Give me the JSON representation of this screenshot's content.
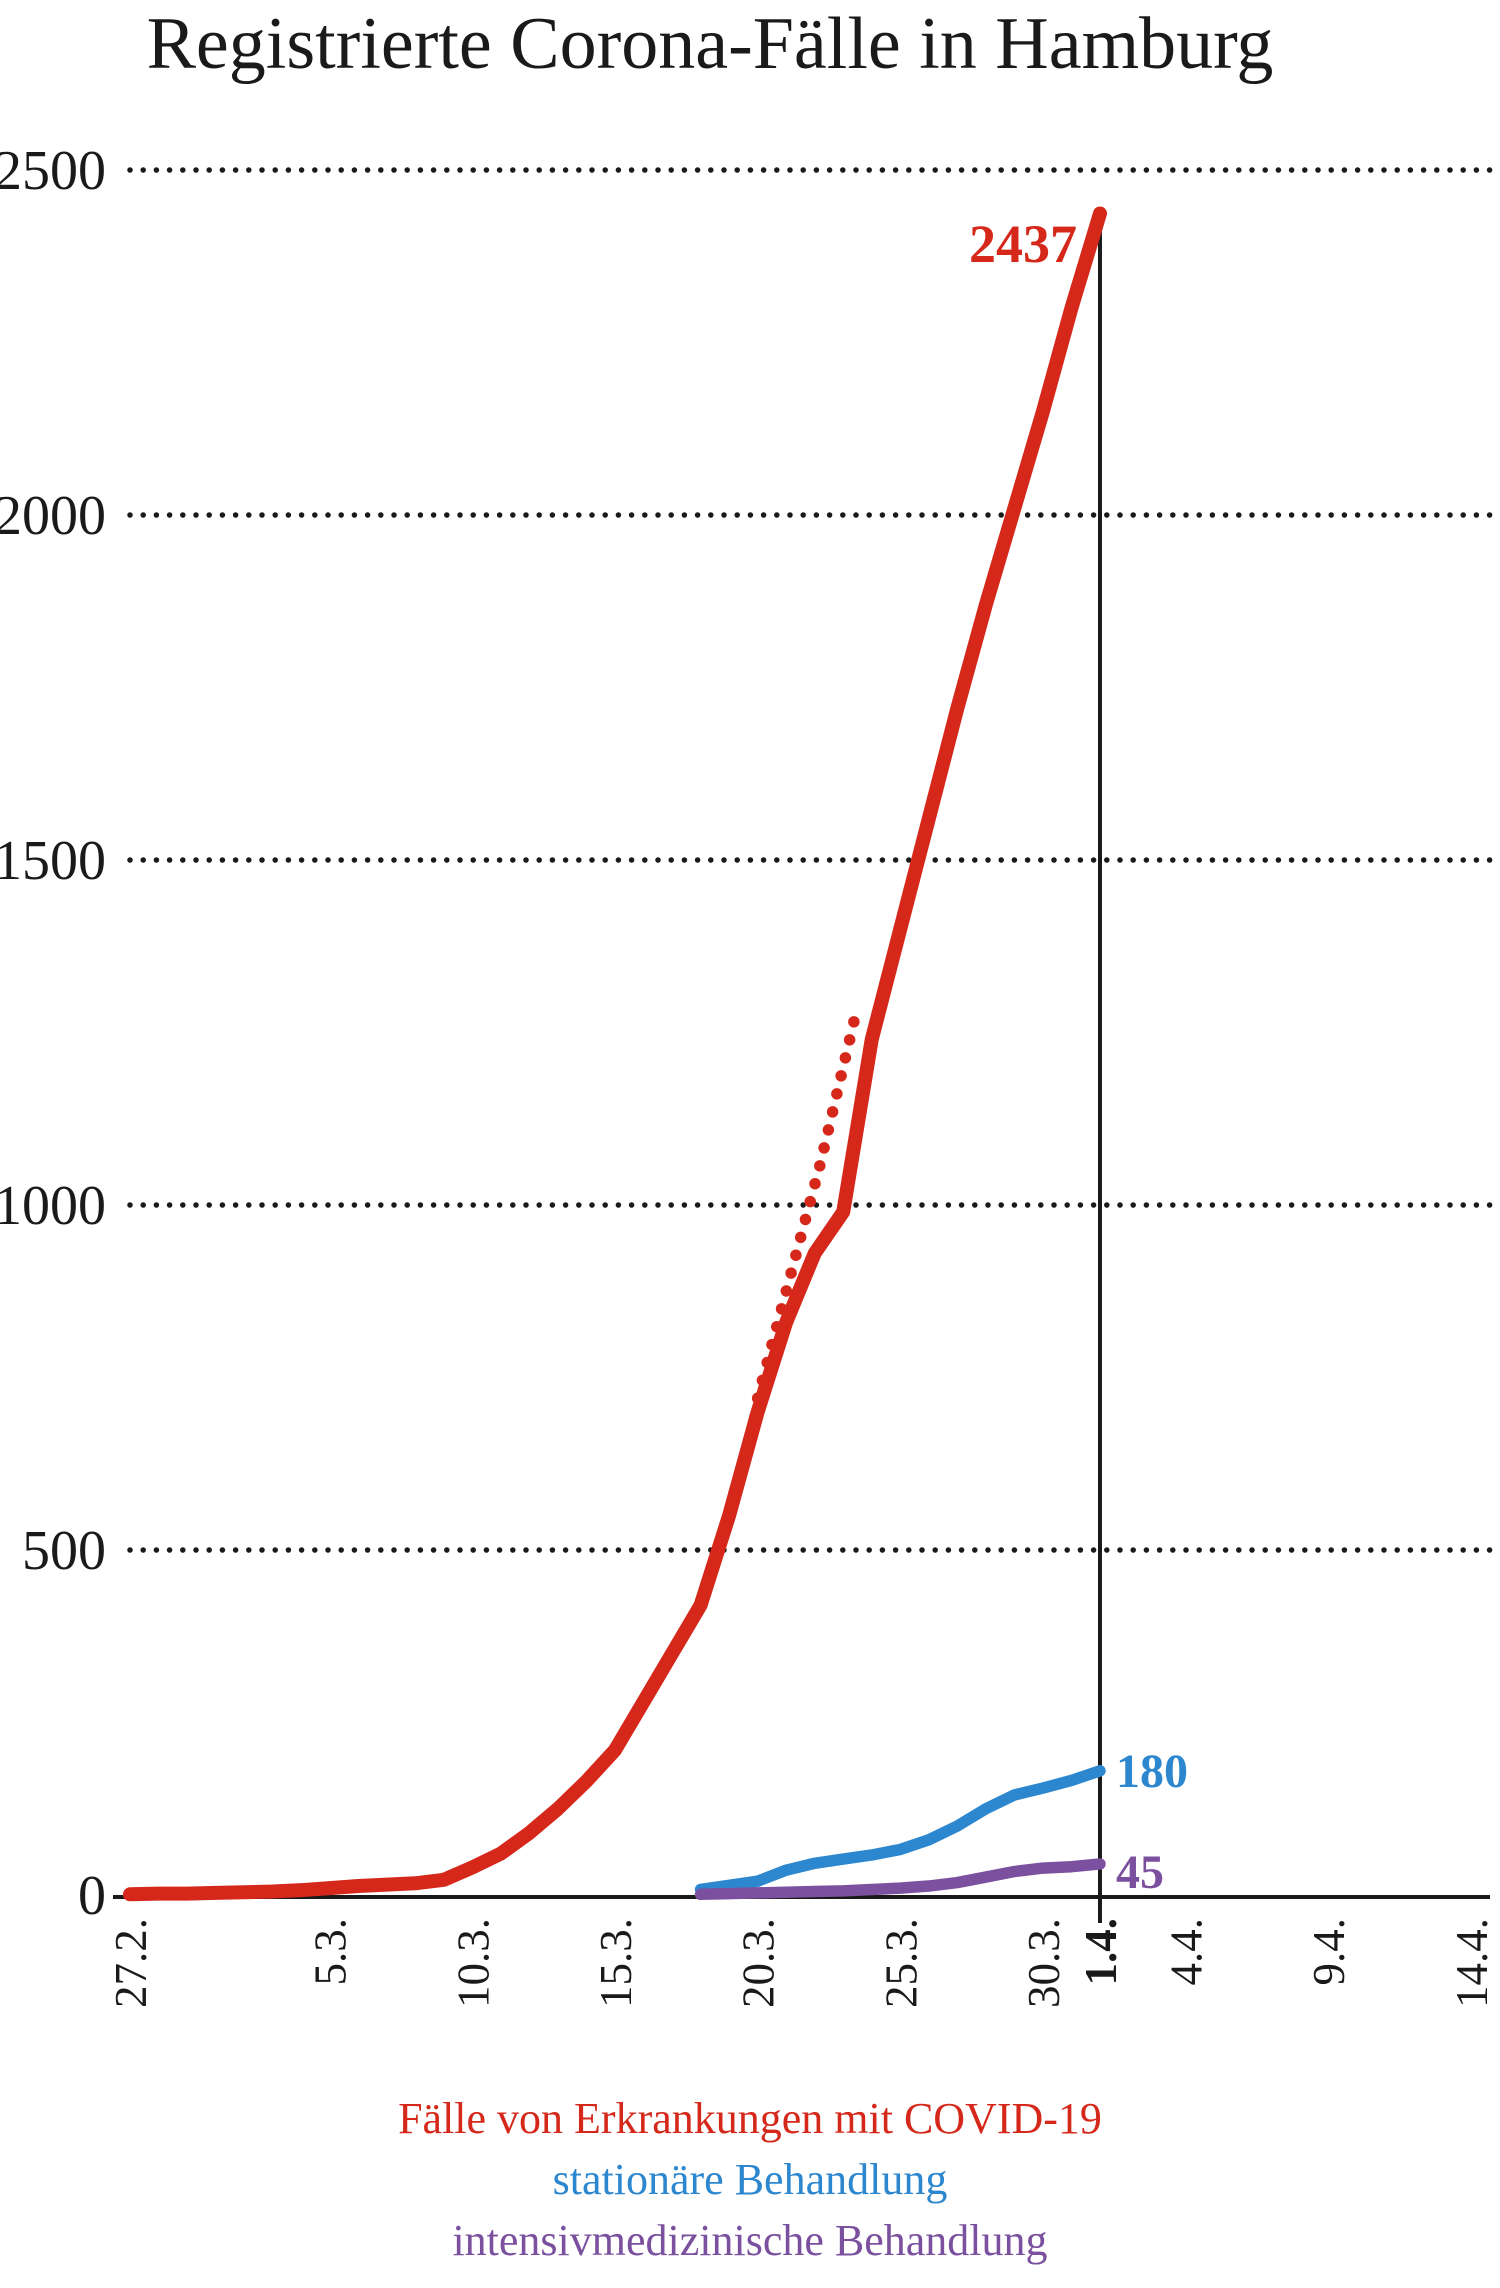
{
  "chart_data": {
    "type": "line",
    "title": "Registrierte Corona-Fälle in Hamburg",
    "ink_color": "#1a1a1a",
    "background": "#ffffff",
    "x_axis": {
      "tick_labels": [
        "27.2.",
        "5.3.",
        "10.3.",
        "15.3.",
        "20.3.",
        "25.3.",
        "30.3.",
        "1.4.",
        "4.4.",
        "9.4.",
        "14.4."
      ],
      "tick_days": [
        0,
        7,
        12,
        17,
        22,
        27,
        32,
        34,
        37,
        42,
        47
      ],
      "day0_date": "27.2.",
      "bold_label": "1.4.",
      "current_day": 34,
      "xlim_days": [
        0,
        47.7
      ]
    },
    "y_axis": {
      "ticks": [
        0,
        500,
        1000,
        1500,
        2000,
        2500
      ],
      "ylim": [
        0,
        2500
      ],
      "gridline_style": "dotted"
    },
    "series": [
      {
        "name": "Fälle von Erkrankungen mit COVID-19",
        "color": "#d5281b",
        "style": "solid",
        "stroke_width": 14,
        "end_label": "2437",
        "points": [
          [
            0,
            1
          ],
          [
            1,
            2
          ],
          [
            2,
            2
          ],
          [
            3,
            3
          ],
          [
            4,
            4
          ],
          [
            5,
            5
          ],
          [
            6,
            7
          ],
          [
            7,
            10
          ],
          [
            8,
            13
          ],
          [
            9,
            15
          ],
          [
            10,
            17
          ],
          [
            11,
            22
          ],
          [
            12,
            40
          ],
          [
            13,
            60
          ],
          [
            14,
            90
          ],
          [
            15,
            125
          ],
          [
            16,
            165
          ],
          [
            17,
            210
          ],
          [
            18,
            280
          ],
          [
            19,
            350
          ],
          [
            20,
            420
          ],
          [
            21,
            550
          ],
          [
            22,
            700
          ],
          [
            23,
            830
          ],
          [
            24,
            930
          ],
          [
            25,
            990
          ],
          [
            26,
            1240
          ],
          [
            27,
            1400
          ],
          [
            28,
            1560
          ],
          [
            29,
            1720
          ],
          [
            30,
            1870
          ],
          [
            31,
            2010
          ],
          [
            32,
            2150
          ],
          [
            33,
            2300
          ],
          [
            34,
            2437
          ]
        ],
        "dotted_points": [
          [
            22,
            720
          ],
          [
            23.1,
            890
          ],
          [
            24.2,
            1060
          ],
          [
            25.4,
            1270
          ]
        ]
      },
      {
        "name": "stationäre Behandlung",
        "color": "#2d87cf",
        "style": "solid",
        "stroke_width": 11.5,
        "end_label": "180",
        "points": [
          [
            20,
            8
          ],
          [
            21,
            14
          ],
          [
            22,
            20
          ],
          [
            23,
            36
          ],
          [
            24,
            46
          ],
          [
            25,
            52
          ],
          [
            26,
            58
          ],
          [
            27,
            66
          ],
          [
            28,
            80
          ],
          [
            29,
            100
          ],
          [
            30,
            125
          ],
          [
            31,
            145
          ],
          [
            32,
            155
          ],
          [
            33,
            166
          ],
          [
            34,
            180
          ]
        ]
      },
      {
        "name": "intensivmedizinische Behandlung",
        "color": "#7b509e",
        "style": "solid",
        "stroke_width": 11.5,
        "end_label": "45",
        "points": [
          [
            20,
            1
          ],
          [
            21,
            2
          ],
          [
            22,
            3
          ],
          [
            23,
            4
          ],
          [
            24,
            5
          ],
          [
            25,
            6
          ],
          [
            26,
            8
          ],
          [
            27,
            10
          ],
          [
            28,
            13
          ],
          [
            29,
            18
          ],
          [
            30,
            26
          ],
          [
            31,
            34
          ],
          [
            32,
            39
          ],
          [
            33,
            41
          ],
          [
            34,
            45
          ]
        ]
      }
    ],
    "legend": {
      "position": "bottom-center"
    }
  }
}
